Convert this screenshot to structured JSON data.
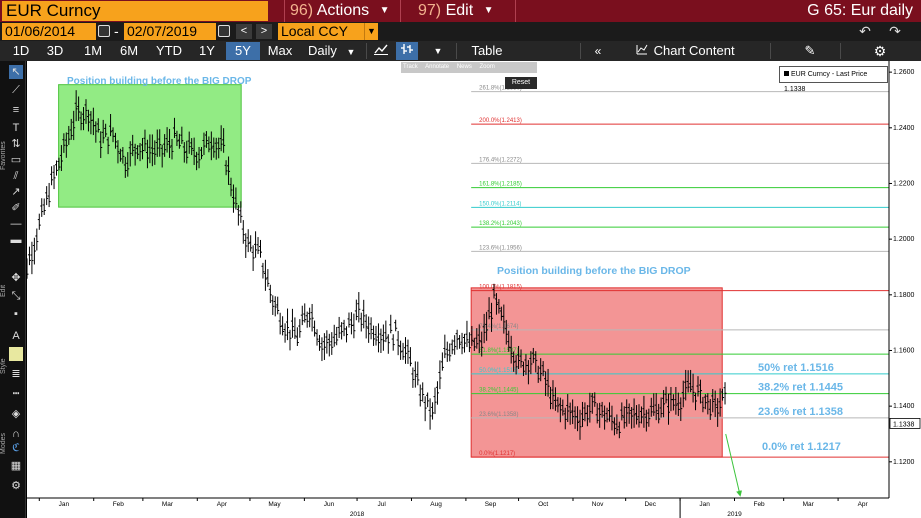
{
  "title_bar": {
    "ticker": "EUR Curncy",
    "actions_num": "96)",
    "actions_label": "Actions",
    "edit_num": "97)",
    "edit_label": "Edit",
    "graph_title": "G 65: Eur daily"
  },
  "date_row": {
    "start_date": "01/06/2014",
    "separator": "-",
    "end_date": "02/07/2019",
    "currency": "Local CCY"
  },
  "toolbar": {
    "periods": [
      "1D",
      "3D",
      "1M",
      "6M",
      "YTD",
      "1Y",
      "5Y",
      "Max"
    ],
    "active_period": "5Y",
    "frequency": "Daily",
    "table_label": "Table",
    "chart_content_label": "Chart Content"
  },
  "left_strip": {
    "groups": [
      "Favorites",
      "Edit",
      "Style",
      "Modes"
    ]
  },
  "overlay_menu": {
    "items": [
      "Track",
      "Annotate",
      "News",
      "Zoom"
    ],
    "reset_label": "Reset"
  },
  "legend": {
    "label": "EUR Curncy - Last Price 1.1338"
  },
  "annotations": {
    "green_box_label": "Position building before the BIG DROP",
    "red_box_label": "Position building before the BIG DROP"
  },
  "fib_levels": [
    {
      "label": "261.8%(1.2530)",
      "value": 1.253,
      "color": "#b8b8b8"
    },
    {
      "label": "200.0%(1.2413)",
      "value": 1.2413,
      "color": "#e03030"
    },
    {
      "label": "176.4%(1.2272)",
      "value": 1.2272,
      "color": "#b8b8b8"
    },
    {
      "label": "161.8%(1.2185)",
      "value": 1.2185,
      "color": "#33cc33"
    },
    {
      "label": "150.0%(1.2114)",
      "value": 1.2114,
      "color": "#33cccc"
    },
    {
      "label": "138.2%(1.2043)",
      "value": 1.2043,
      "color": "#33cc33"
    },
    {
      "label": "123.6%(1.1956)",
      "value": 1.1956,
      "color": "#b8b8b8"
    },
    {
      "label": "100.0%(1.1815)",
      "value": 1.1815,
      "color": "#e03030"
    },
    {
      "label": "76.4%(1.1674)",
      "value": 1.1674,
      "color": "#b8b8b8"
    },
    {
      "label": "61.8%(1.1587)",
      "value": 1.1587,
      "color": "#33cc33"
    },
    {
      "label": "50.0%(1.1516)",
      "value": 1.1516,
      "color": "#33cccc"
    },
    {
      "label": "38.2%(1.1445)",
      "value": 1.1445,
      "color": "#33cc33"
    },
    {
      "label": "23.6%(1.1358)",
      "value": 1.1358,
      "color": "#b8b8b8"
    },
    {
      "label": "0.0%(1.1217)",
      "value": 1.1217,
      "color": "#e03030"
    }
  ],
  "ret_labels": [
    {
      "text": "50% ret 1.1516",
      "value": 1.1516
    },
    {
      "text": "38.2% ret 1.1445",
      "value": 1.1445
    },
    {
      "text": "23.6% ret 1.1358",
      "value": 1.1358
    },
    {
      "text": "0.0% ret 1.1217",
      "value": 1.1217
    }
  ],
  "last_price_tag": "1.1338",
  "colors": {
    "title_bar": "#7a0f1e",
    "ticker_box": "#f7a21c",
    "active_period": "#3d6fa8",
    "green_box": "#7fe86f",
    "red_box": "#f07a7a",
    "ret_label": "#6ab7e8",
    "arrow": "#3cc43c"
  },
  "chart_data": {
    "type": "line",
    "style": "ohlc-bars",
    "series": [
      {
        "name": "EUR Curncy - Last Price",
        "x": [
          "2017-12-18",
          "2017-12-25",
          "2018-01-01",
          "2018-01-08",
          "2018-01-15",
          "2018-01-22",
          "2018-01-29",
          "2018-02-05",
          "2018-02-12",
          "2018-02-19",
          "2018-02-26",
          "2018-03-05",
          "2018-03-12",
          "2018-03-19",
          "2018-03-26",
          "2018-04-02",
          "2018-04-09",
          "2018-04-16",
          "2018-04-23",
          "2018-04-30",
          "2018-05-07",
          "2018-05-14",
          "2018-05-21",
          "2018-05-28",
          "2018-06-04",
          "2018-06-11",
          "2018-06-18",
          "2018-06-25",
          "2018-07-02",
          "2018-07-09",
          "2018-07-16",
          "2018-07-23",
          "2018-07-30",
          "2018-08-06",
          "2018-08-13",
          "2018-08-20",
          "2018-08-27",
          "2018-09-03",
          "2018-09-10",
          "2018-09-17",
          "2018-09-24",
          "2018-10-01",
          "2018-10-08",
          "2018-10-15",
          "2018-10-22",
          "2018-10-29",
          "2018-11-05",
          "2018-11-12",
          "2018-11-19",
          "2018-11-26",
          "2018-12-03",
          "2018-12-10",
          "2018-12-17",
          "2018-12-24",
          "2018-12-31",
          "2019-01-07",
          "2019-01-14",
          "2019-01-21",
          "2019-01-28"
        ],
        "values": [
          1.182,
          1.19,
          1.205,
          1.22,
          1.232,
          1.245,
          1.246,
          1.236,
          1.238,
          1.228,
          1.234,
          1.232,
          1.232,
          1.236,
          1.232,
          1.231,
          1.236,
          1.232,
          1.212,
          1.198,
          1.194,
          1.178,
          1.169,
          1.165,
          1.175,
          1.162,
          1.164,
          1.168,
          1.173,
          1.168,
          1.166,
          1.166,
          1.158,
          1.145,
          1.137,
          1.158,
          1.166,
          1.162,
          1.163,
          1.178,
          1.167,
          1.155,
          1.157,
          1.151,
          1.14,
          1.138,
          1.136,
          1.14,
          1.137,
          1.134,
          1.136,
          1.138,
          1.138,
          1.141,
          1.142,
          1.147,
          1.143,
          1.139,
          1.144
        ]
      }
    ],
    "x_tick_labels": [
      "Jan",
      "Feb",
      "Mar",
      "Apr",
      "May",
      "Jun",
      "Jul",
      "Aug",
      "Sep",
      "Oct",
      "Nov",
      "Dec",
      "Jan",
      "Feb",
      "Mar",
      "Apr"
    ],
    "x_year_labels": [
      "2018",
      "2019"
    ],
    "y_tick_labels": [
      "1.2600",
      "1.2400",
      "1.2200",
      "1.2000",
      "1.1800",
      "1.1600",
      "1.1400",
      "1.1200"
    ],
    "ylim": [
      1.107,
      1.264
    ],
    "xlim": [
      "2017-12-25",
      "2019-04-30"
    ],
    "grid": false,
    "legend_position": "top-right"
  }
}
